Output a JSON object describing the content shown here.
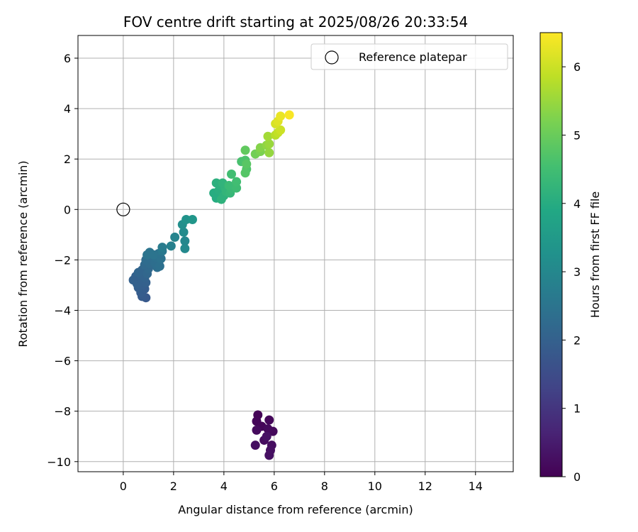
{
  "chart_data": {
    "type": "scatter",
    "title": "FOV centre drift starting at 2025/08/26 20:33:54",
    "xlabel": "Angular distance from reference (arcmin)",
    "ylabel": "Rotation from reference (arcmin)",
    "xlim": [
      -1.8,
      15.5
    ],
    "ylim": [
      -10.4,
      6.9
    ],
    "xticks": [
      0,
      2,
      4,
      6,
      8,
      10,
      12,
      14
    ],
    "yticks": [
      6,
      4,
      2,
      0,
      -2,
      -4,
      -6,
      -8,
      -10
    ],
    "xtick_labels": [
      "0",
      "2",
      "4",
      "6",
      "8",
      "10",
      "12",
      "14"
    ],
    "ytick_labels": [
      "6",
      "4",
      "2",
      "0",
      "−2",
      "−4",
      "−6",
      "−8",
      "−10"
    ],
    "grid": true,
    "legend": {
      "placement": "top-right",
      "entries": [
        {
          "name": "Reference platepar",
          "marker": "open-circle",
          "x": 0,
          "y": 0
        }
      ]
    },
    "colorbar": {
      "label": "Hours from first FF file",
      "colormap": "viridis",
      "range": [
        0,
        6.5
      ],
      "ticks": [
        0,
        1,
        2,
        3,
        4,
        5,
        6
      ],
      "tick_labels": [
        "0",
        "1",
        "2",
        "3",
        "4",
        "5",
        "6"
      ]
    },
    "series": [
      {
        "points": [
          {
            "x": 5.35,
            "y": -8.15,
            "c": 0.05
          },
          {
            "x": 5.3,
            "y": -8.4,
            "c": 0.08
          },
          {
            "x": 5.5,
            "y": -8.6,
            "c": 0.1
          },
          {
            "x": 5.8,
            "y": -8.35,
            "c": 0.12
          },
          {
            "x": 5.95,
            "y": -8.8,
            "c": 0.14
          },
          {
            "x": 5.75,
            "y": -8.7,
            "c": 0.16
          },
          {
            "x": 5.3,
            "y": -8.75,
            "c": 0.18
          },
          {
            "x": 5.6,
            "y": -9.15,
            "c": 0.2
          },
          {
            "x": 5.9,
            "y": -9.35,
            "c": 0.22
          },
          {
            "x": 5.25,
            "y": -9.35,
            "c": 0.24
          },
          {
            "x": 5.85,
            "y": -9.55,
            "c": 0.26
          },
          {
            "x": 5.8,
            "y": -9.75,
            "c": 0.28
          },
          {
            "x": 5.7,
            "y": -9.0,
            "c": 0.3
          },
          {
            "x": 0.9,
            "y": -3.5,
            "c": 1.8
          },
          {
            "x": 0.75,
            "y": -3.45,
            "c": 1.85
          },
          {
            "x": 0.7,
            "y": -3.3,
            "c": 1.9
          },
          {
            "x": 0.85,
            "y": -3.15,
            "c": 1.9
          },
          {
            "x": 0.6,
            "y": -3.1,
            "c": 1.95
          },
          {
            "x": 0.75,
            "y": -3.0,
            "c": 1.95
          },
          {
            "x": 0.9,
            "y": -2.9,
            "c": 2.0
          },
          {
            "x": 0.55,
            "y": -2.95,
            "c": 2.0
          },
          {
            "x": 0.65,
            "y": -2.75,
            "c": 2.0
          },
          {
            "x": 0.4,
            "y": -2.8,
            "c": 2.0
          },
          {
            "x": 0.5,
            "y": -2.65,
            "c": 2.0
          },
          {
            "x": 0.7,
            "y": -2.6,
            "c": 2.05
          },
          {
            "x": 0.85,
            "y": -2.7,
            "c": 2.05
          },
          {
            "x": 0.6,
            "y": -2.5,
            "c": 2.1
          },
          {
            "x": 0.75,
            "y": -2.4,
            "c": 2.1
          },
          {
            "x": 0.95,
            "y": -2.55,
            "c": 2.15
          },
          {
            "x": 1.0,
            "y": -2.35,
            "c": 2.2
          },
          {
            "x": 0.85,
            "y": -2.2,
            "c": 2.2
          },
          {
            "x": 1.05,
            "y": -2.15,
            "c": 2.25
          },
          {
            "x": 0.9,
            "y": -2.0,
            "c": 2.3
          },
          {
            "x": 1.1,
            "y": -1.95,
            "c": 2.3
          },
          {
            "x": 1.25,
            "y": -2.1,
            "c": 2.35
          },
          {
            "x": 1.35,
            "y": -2.3,
            "c": 2.35
          },
          {
            "x": 1.45,
            "y": -2.25,
            "c": 2.4
          },
          {
            "x": 1.3,
            "y": -1.9,
            "c": 2.4
          },
          {
            "x": 1.5,
            "y": -1.95,
            "c": 2.45
          },
          {
            "x": 1.4,
            "y": -1.75,
            "c": 2.45
          },
          {
            "x": 1.2,
            "y": -1.8,
            "c": 2.5
          },
          {
            "x": 0.95,
            "y": -1.8,
            "c": 2.5
          },
          {
            "x": 1.05,
            "y": -1.7,
            "c": 2.5
          },
          {
            "x": 1.55,
            "y": -1.65,
            "c": 2.6
          },
          {
            "x": 1.55,
            "y": -1.5,
            "c": 2.7
          },
          {
            "x": 1.9,
            "y": -1.45,
            "c": 2.8
          },
          {
            "x": 2.05,
            "y": -1.1,
            "c": 2.9
          },
          {
            "x": 2.45,
            "y": -1.25,
            "c": 3.0
          },
          {
            "x": 2.45,
            "y": -1.55,
            "c": 3.05
          },
          {
            "x": 2.4,
            "y": -0.9,
            "c": 3.1
          },
          {
            "x": 2.35,
            "y": -0.6,
            "c": 3.2
          },
          {
            "x": 2.5,
            "y": -0.4,
            "c": 3.3
          },
          {
            "x": 2.75,
            "y": -0.4,
            "c": 3.4
          },
          {
            "x": 3.6,
            "y": 0.65,
            "c": 4.0
          },
          {
            "x": 3.7,
            "y": 0.45,
            "c": 4.0
          },
          {
            "x": 3.8,
            "y": 0.75,
            "c": 4.05
          },
          {
            "x": 3.7,
            "y": 1.05,
            "c": 4.1
          },
          {
            "x": 3.85,
            "y": 0.95,
            "c": 4.1
          },
          {
            "x": 4.0,
            "y": 0.55,
            "c": 4.15
          },
          {
            "x": 3.9,
            "y": 0.4,
            "c": 4.15
          },
          {
            "x": 4.05,
            "y": 0.85,
            "c": 4.2
          },
          {
            "x": 3.95,
            "y": 1.05,
            "c": 4.2
          },
          {
            "x": 4.1,
            "y": 0.7,
            "c": 4.25
          },
          {
            "x": 4.25,
            "y": 0.65,
            "c": 4.3
          },
          {
            "x": 4.3,
            "y": 0.8,
            "c": 4.35
          },
          {
            "x": 4.2,
            "y": 0.95,
            "c": 4.4
          },
          {
            "x": 4.5,
            "y": 0.85,
            "c": 4.45
          },
          {
            "x": 4.5,
            "y": 1.1,
            "c": 4.5
          },
          {
            "x": 4.3,
            "y": 1.4,
            "c": 4.5
          },
          {
            "x": 4.7,
            "y": 1.9,
            "c": 4.6
          },
          {
            "x": 4.85,
            "y": 1.95,
            "c": 4.65
          },
          {
            "x": 4.9,
            "y": 1.6,
            "c": 4.7
          },
          {
            "x": 4.85,
            "y": 1.45,
            "c": 4.75
          },
          {
            "x": 4.9,
            "y": 1.8,
            "c": 4.8
          },
          {
            "x": 4.85,
            "y": 2.35,
            "c": 4.9
          },
          {
            "x": 5.25,
            "y": 2.2,
            "c": 5.1
          },
          {
            "x": 5.45,
            "y": 2.3,
            "c": 5.2
          },
          {
            "x": 5.45,
            "y": 2.45,
            "c": 5.3
          },
          {
            "x": 5.7,
            "y": 2.55,
            "c": 5.4
          },
          {
            "x": 5.8,
            "y": 2.25,
            "c": 5.45
          },
          {
            "x": 5.8,
            "y": 2.6,
            "c": 5.5
          },
          {
            "x": 5.75,
            "y": 2.9,
            "c": 5.6
          },
          {
            "x": 6.05,
            "y": 2.95,
            "c": 5.8
          },
          {
            "x": 6.15,
            "y": 3.05,
            "c": 5.9
          },
          {
            "x": 6.25,
            "y": 3.15,
            "c": 6.0
          },
          {
            "x": 6.05,
            "y": 3.4,
            "c": 6.1
          },
          {
            "x": 6.15,
            "y": 3.5,
            "c": 6.2
          },
          {
            "x": 6.25,
            "y": 3.7,
            "c": 6.3
          },
          {
            "x": 6.6,
            "y": 3.75,
            "c": 6.45
          }
        ]
      }
    ]
  }
}
